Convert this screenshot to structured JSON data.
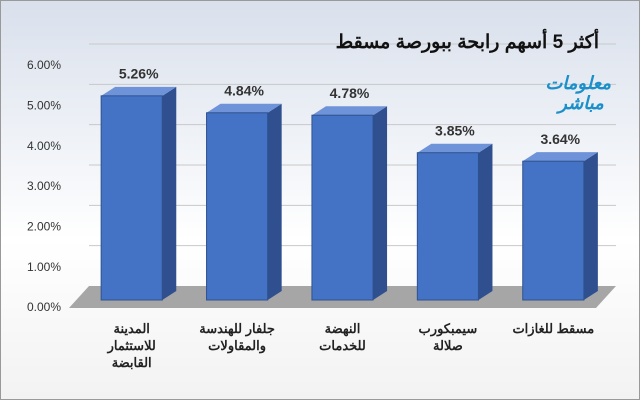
{
  "chart_data": {
    "type": "bar3d",
    "title": "أكثر 5 أسهم رابحة ببورصة مسقط",
    "watermark": "معلومات مباشر",
    "categories": [
      "المدينة\nللاستثمار\nالقابضة",
      "جلفار للهندسة\nوالمقاولات",
      "النهضة\nللخدمات",
      "سيمبكورب\nصلالة",
      "مسقط للغازات"
    ],
    "values": [
      5.26,
      4.84,
      4.78,
      3.85,
      3.64
    ],
    "value_labels": [
      "5.26%",
      "4.84%",
      "4.78%",
      "3.85%",
      "3.64%"
    ],
    "color": "#4472c4",
    "ylim": [
      0,
      6
    ],
    "yticks": [
      {
        "value": 0,
        "label": "0.00%"
      },
      {
        "value": 1,
        "label": "1.00%"
      },
      {
        "value": 2,
        "label": "2.00%"
      },
      {
        "value": 3,
        "label": "3.00%"
      },
      {
        "value": 4,
        "label": "4.00%"
      },
      {
        "value": 5,
        "label": "5.00%"
      },
      {
        "value": 6,
        "label": "6.00%"
      }
    ],
    "grid": true
  }
}
